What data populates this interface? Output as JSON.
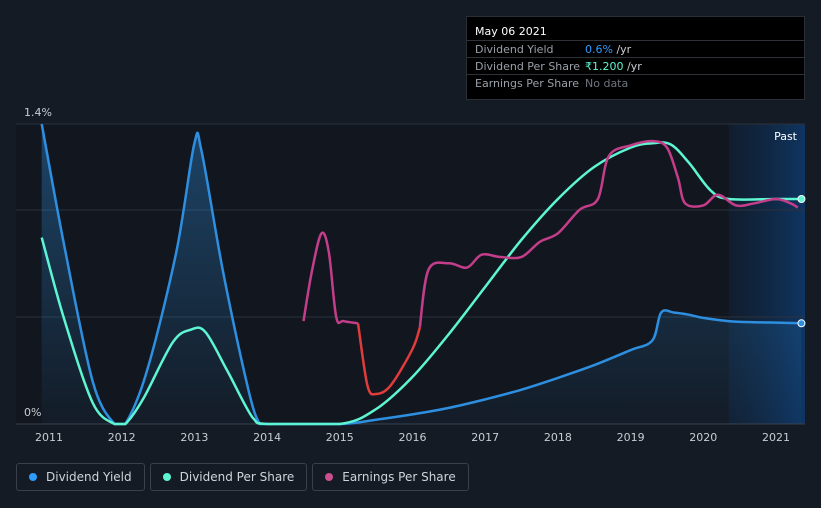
{
  "chart_data": {
    "type": "line",
    "y_axis": {
      "ticks": [
        "1.4%",
        "0%"
      ],
      "ylim": [
        0,
        1.4
      ]
    },
    "x_axis": {
      "tick_labels": [
        "2011",
        "2012",
        "2013",
        "2014",
        "2015",
        "2016",
        "2017",
        "2018",
        "2019",
        "2020",
        "2021"
      ],
      "xlim": [
        2010.9,
        2021.35
      ]
    },
    "past_label": "Past",
    "past_region_start": 2020.35,
    "tooltip": {
      "date": "May 06 2021",
      "rows": [
        {
          "label": "Dividend Yield",
          "value": "0.6%",
          "unit": " /yr",
          "color": "#2e9bff"
        },
        {
          "label": "Dividend Per Share",
          "value": "₹1.200",
          "unit": " /yr",
          "color": "#5ef5d2"
        },
        {
          "label": "Earnings Per Share",
          "value": "No data",
          "unit": "",
          "color": "#6f757d"
        }
      ]
    },
    "series": [
      {
        "name": "Dividend Yield",
        "color": "#2e8fe0",
        "area": true,
        "points": [
          [
            2010.9,
            1.4
          ],
          [
            2011.2,
            0.85
          ],
          [
            2011.6,
            0.2
          ],
          [
            2011.9,
            0.0
          ],
          [
            2012.05,
            0.0
          ],
          [
            2012.35,
            0.25
          ],
          [
            2012.75,
            0.8
          ],
          [
            2013.0,
            1.31
          ],
          [
            2013.1,
            1.27
          ],
          [
            2013.4,
            0.7
          ],
          [
            2013.75,
            0.15
          ],
          [
            2013.9,
            0.0
          ],
          [
            2014.0,
            0.0
          ],
          [
            2015.0,
            0.0
          ],
          [
            2015.5,
            0.02
          ],
          [
            2016.0,
            0.045
          ],
          [
            2016.5,
            0.075
          ],
          [
            2017.0,
            0.115
          ],
          [
            2017.5,
            0.16
          ],
          [
            2018.0,
            0.215
          ],
          [
            2018.5,
            0.275
          ],
          [
            2019.0,
            0.345
          ],
          [
            2019.3,
            0.39
          ],
          [
            2019.42,
            0.52
          ],
          [
            2019.6,
            0.52
          ],
          [
            2019.8,
            0.51
          ],
          [
            2020.0,
            0.495
          ],
          [
            2020.35,
            0.48
          ],
          [
            2020.7,
            0.475
          ],
          [
            2021.0,
            0.473
          ],
          [
            2021.35,
            0.47
          ]
        ],
        "end_marker": true
      },
      {
        "name": "Dividend Per Share",
        "color": "#5ef5d2",
        "area": false,
        "points": [
          [
            2010.9,
            0.87
          ],
          [
            2011.2,
            0.5
          ],
          [
            2011.6,
            0.1
          ],
          [
            2011.9,
            0.0
          ],
          [
            2012.05,
            0.0
          ],
          [
            2012.3,
            0.12
          ],
          [
            2012.7,
            0.38
          ],
          [
            2012.95,
            0.44
          ],
          [
            2013.15,
            0.43
          ],
          [
            2013.45,
            0.25
          ],
          [
            2013.8,
            0.03
          ],
          [
            2014.0,
            0.0
          ],
          [
            2015.0,
            0.0
          ],
          [
            2015.5,
            0.07
          ],
          [
            2016.0,
            0.22
          ],
          [
            2016.5,
            0.42
          ],
          [
            2017.0,
            0.64
          ],
          [
            2017.5,
            0.86
          ],
          [
            2018.0,
            1.05
          ],
          [
            2018.5,
            1.2
          ],
          [
            2019.0,
            1.29
          ],
          [
            2019.3,
            1.31
          ],
          [
            2019.55,
            1.305
          ],
          [
            2019.8,
            1.22
          ],
          [
            2020.1,
            1.09
          ],
          [
            2020.35,
            1.05
          ],
          [
            2021.0,
            1.05
          ],
          [
            2021.35,
            1.05
          ]
        ],
        "end_marker": true
      },
      {
        "name": "Earnings Per Share",
        "color": "#c94f8f",
        "area": false,
        "segments": [
          {
            "color": "#c43d8a",
            "points": [
              [
                2014.5,
                0.48
              ],
              [
                2014.62,
                0.72
              ],
              [
                2014.75,
                0.89
              ],
              [
                2014.85,
                0.8
              ],
              [
                2014.95,
                0.5
              ],
              [
                2015.05,
                0.48
              ],
              [
                2015.25,
                0.47
              ]
            ]
          },
          {
            "color": "#e03c3c",
            "points": [
              [
                2015.25,
                0.47
              ],
              [
                2015.38,
                0.18
              ],
              [
                2015.5,
                0.14
              ],
              [
                2015.7,
                0.18
              ],
              [
                2016.0,
                0.35
              ],
              [
                2016.1,
                0.45
              ]
            ]
          },
          {
            "color": "#c43d8a",
            "points": [
              [
                2016.1,
                0.45
              ],
              [
                2016.22,
                0.72
              ],
              [
                2016.5,
                0.75
              ],
              [
                2016.75,
                0.73
              ],
              [
                2016.95,
                0.79
              ],
              [
                2017.2,
                0.78
              ],
              [
                2017.5,
                0.78
              ],
              [
                2017.75,
                0.85
              ],
              [
                2018.0,
                0.89
              ],
              [
                2018.3,
                1.0
              ],
              [
                2018.55,
                1.05
              ],
              [
                2018.7,
                1.25
              ],
              [
                2019.0,
                1.3
              ],
              [
                2019.3,
                1.32
              ],
              [
                2019.5,
                1.29
              ],
              [
                2019.65,
                1.15
              ],
              [
                2019.75,
                1.03
              ],
              [
                2020.0,
                1.02
              ],
              [
                2020.2,
                1.07
              ],
              [
                2020.45,
                1.02
              ],
              [
                2020.7,
                1.03
              ],
              [
                2021.0,
                1.05
              ],
              [
                2021.2,
                1.03
              ],
              [
                2021.3,
                1.01
              ]
            ]
          }
        ],
        "end_marker": false
      }
    ]
  },
  "legend": [
    {
      "label": "Dividend Yield",
      "color": "#2e9bff"
    },
    {
      "label": "Dividend Per Share",
      "color": "#5ef5d2"
    },
    {
      "label": "Earnings Per Share",
      "color": "#c94f8f"
    }
  ]
}
